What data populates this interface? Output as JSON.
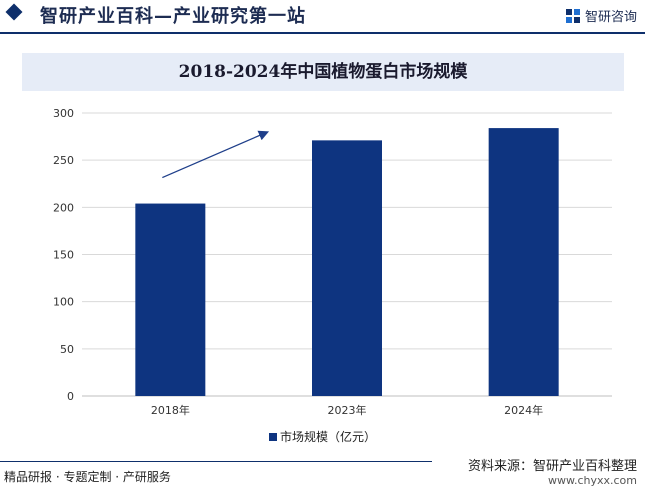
{
  "header": {
    "site_title": "智研产业百科—产业研究第一站",
    "brand_name": "智研咨询"
  },
  "chart_data": {
    "type": "bar",
    "title": "2018-2024年中国植物蛋白市场规模",
    "categories": [
      "2018年",
      "2023年",
      "2024年"
    ],
    "series": [
      {
        "name": "市场规模（亿元）",
        "values": [
          204,
          271,
          284
        ],
        "color": "#0e3480"
      }
    ],
    "ylim": [
      0,
      300
    ],
    "yticks": [
      0,
      50,
      100,
      150,
      200,
      250,
      300
    ],
    "xlabel": "",
    "ylabel": "",
    "grid": true,
    "legend_position": "bottom-center",
    "annotation": "trend-arrow-up"
  },
  "footer": {
    "slogan": "精品研报 · 专题定制 · 产研服务",
    "source": "资料来源：智研产业百科整理",
    "url": "www.chyxx.com"
  },
  "colors": {
    "bar": "#0e3480",
    "header_accent": "#0e2f6b",
    "title_bg": "#e6ecf7",
    "grid": "#d9d9d9"
  }
}
